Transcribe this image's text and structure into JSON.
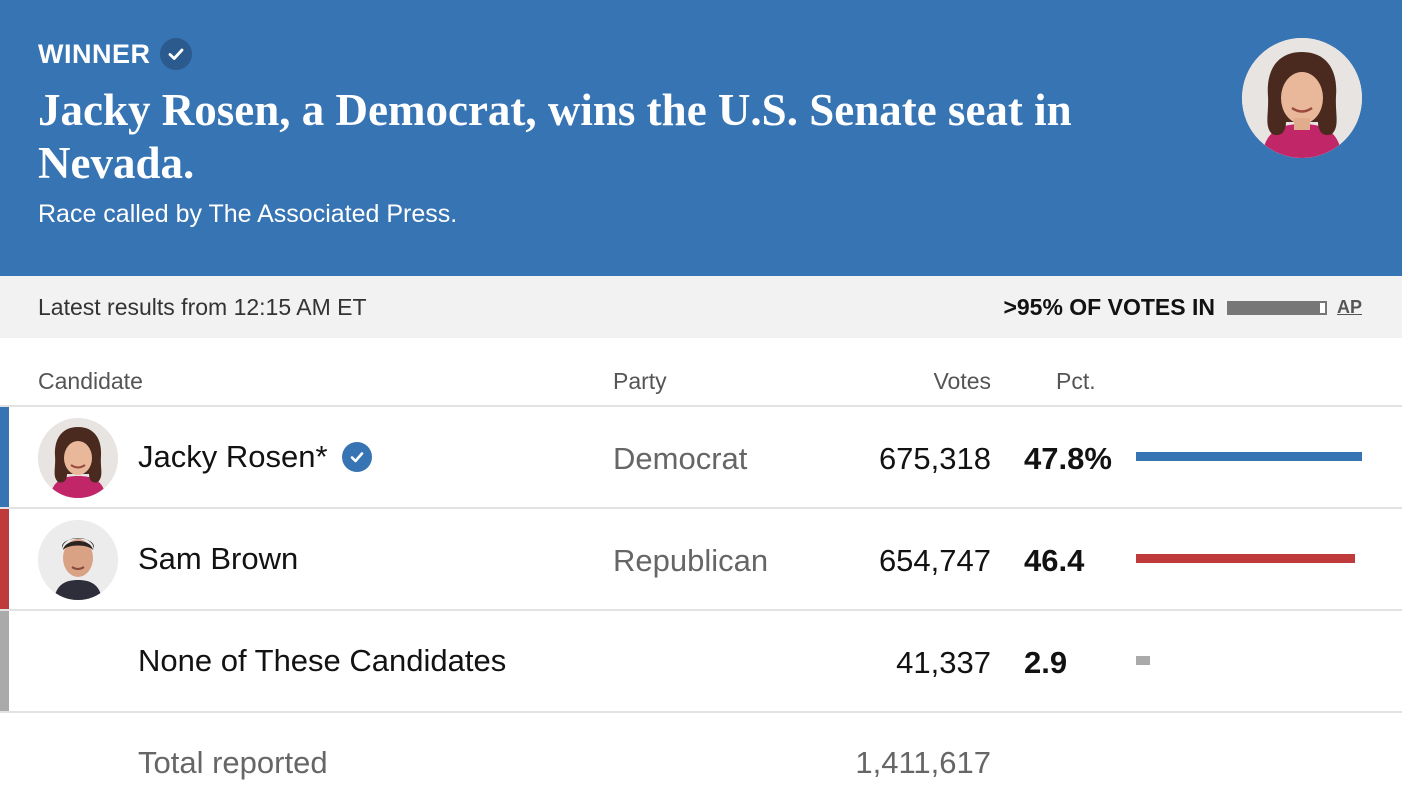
{
  "header": {
    "winner_label": "WINNER",
    "headline": "Jacky Rosen, a Democrat, wins the U.S. Senate seat in Nevada.",
    "subline": "Race called by The Associated Press.",
    "background_color": "#3774b3"
  },
  "status": {
    "latest": "Latest results from 12:15 AM ET",
    "votes_in": ">95% OF VOTES IN",
    "votes_in_fraction": 0.95,
    "source_link": "AP"
  },
  "table": {
    "columns": {
      "candidate": "Candidate",
      "party": "Party",
      "votes": "Votes",
      "pct": "Pct."
    },
    "rows": [
      {
        "name": "Jacky Rosen*",
        "winner": true,
        "party": "Democrat",
        "votes": "675,318",
        "pct": "47.8%",
        "pct_value": 47.8,
        "color": "#3774b3"
      },
      {
        "name": "Sam Brown",
        "winner": false,
        "party": "Republican",
        "votes": "654,747",
        "pct": "46.4",
        "pct_value": 46.4,
        "color": "#bf3b3b"
      },
      {
        "name": "None of These Candidates",
        "winner": false,
        "party": "",
        "votes": "41,337",
        "pct": "2.9",
        "pct_value": 2.9,
        "color": "#aaaaaa"
      }
    ],
    "total": {
      "label": "Total reported",
      "votes": "1,411,617"
    }
  }
}
